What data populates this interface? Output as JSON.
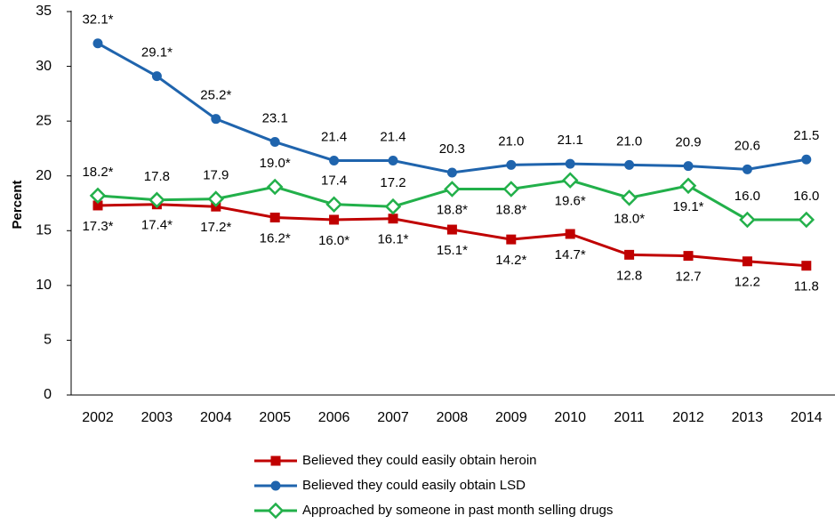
{
  "chart_data": {
    "type": "line",
    "y_label": "Percent",
    "categories": [
      "2002",
      "2003",
      "2004",
      "2005",
      "2006",
      "2007",
      "2008",
      "2009",
      "2010",
      "2011",
      "2012",
      "2013",
      "2014"
    ],
    "ylim": [
      0,
      35
    ],
    "yticks": [
      0,
      5,
      10,
      15,
      20,
      25,
      30,
      35
    ],
    "series": [
      {
        "name": "Believed they could easily obtain heroin",
        "color": "#c00000",
        "marker": "square",
        "values": [
          17.3,
          17.4,
          17.2,
          16.2,
          16.0,
          16.1,
          15.1,
          14.2,
          14.7,
          12.8,
          12.7,
          12.2,
          11.8
        ],
        "value_labels": [
          "17.3*",
          "17.4*",
          "17.2*",
          "16.2*",
          "16.0*",
          "16.1*",
          "15.1*",
          "14.2*",
          "14.7*",
          "12.8",
          "12.7",
          "12.2",
          "11.8"
        ]
      },
      {
        "name": "Believed they could easily obtain LSD",
        "color": "#1f64ad",
        "marker": "circle",
        "values": [
          32.1,
          29.1,
          25.2,
          23.1,
          21.4,
          21.4,
          20.3,
          21.0,
          21.1,
          21.0,
          20.9,
          20.6,
          21.5
        ],
        "value_labels": [
          "32.1*",
          "29.1*",
          "25.2*",
          "23.1",
          "21.4",
          "21.4",
          "20.3",
          "21.0",
          "21.1",
          "21.0",
          "20.9",
          "20.6",
          "21.5"
        ]
      },
      {
        "name": "Approached by someone in past month selling drugs",
        "color": "#22b04a",
        "marker": "diamond",
        "values": [
          18.2,
          17.8,
          17.9,
          19.0,
          17.4,
          17.2,
          18.8,
          18.8,
          19.6,
          18.0,
          19.1,
          16.0,
          16.0
        ],
        "value_labels": [
          "18.2*",
          "17.8",
          "17.9",
          "19.0*",
          "17.4",
          "17.2",
          "18.8*",
          "18.8*",
          "19.6*",
          "18.0*",
          "19.1*",
          "16.0",
          "16.0"
        ]
      }
    ]
  }
}
